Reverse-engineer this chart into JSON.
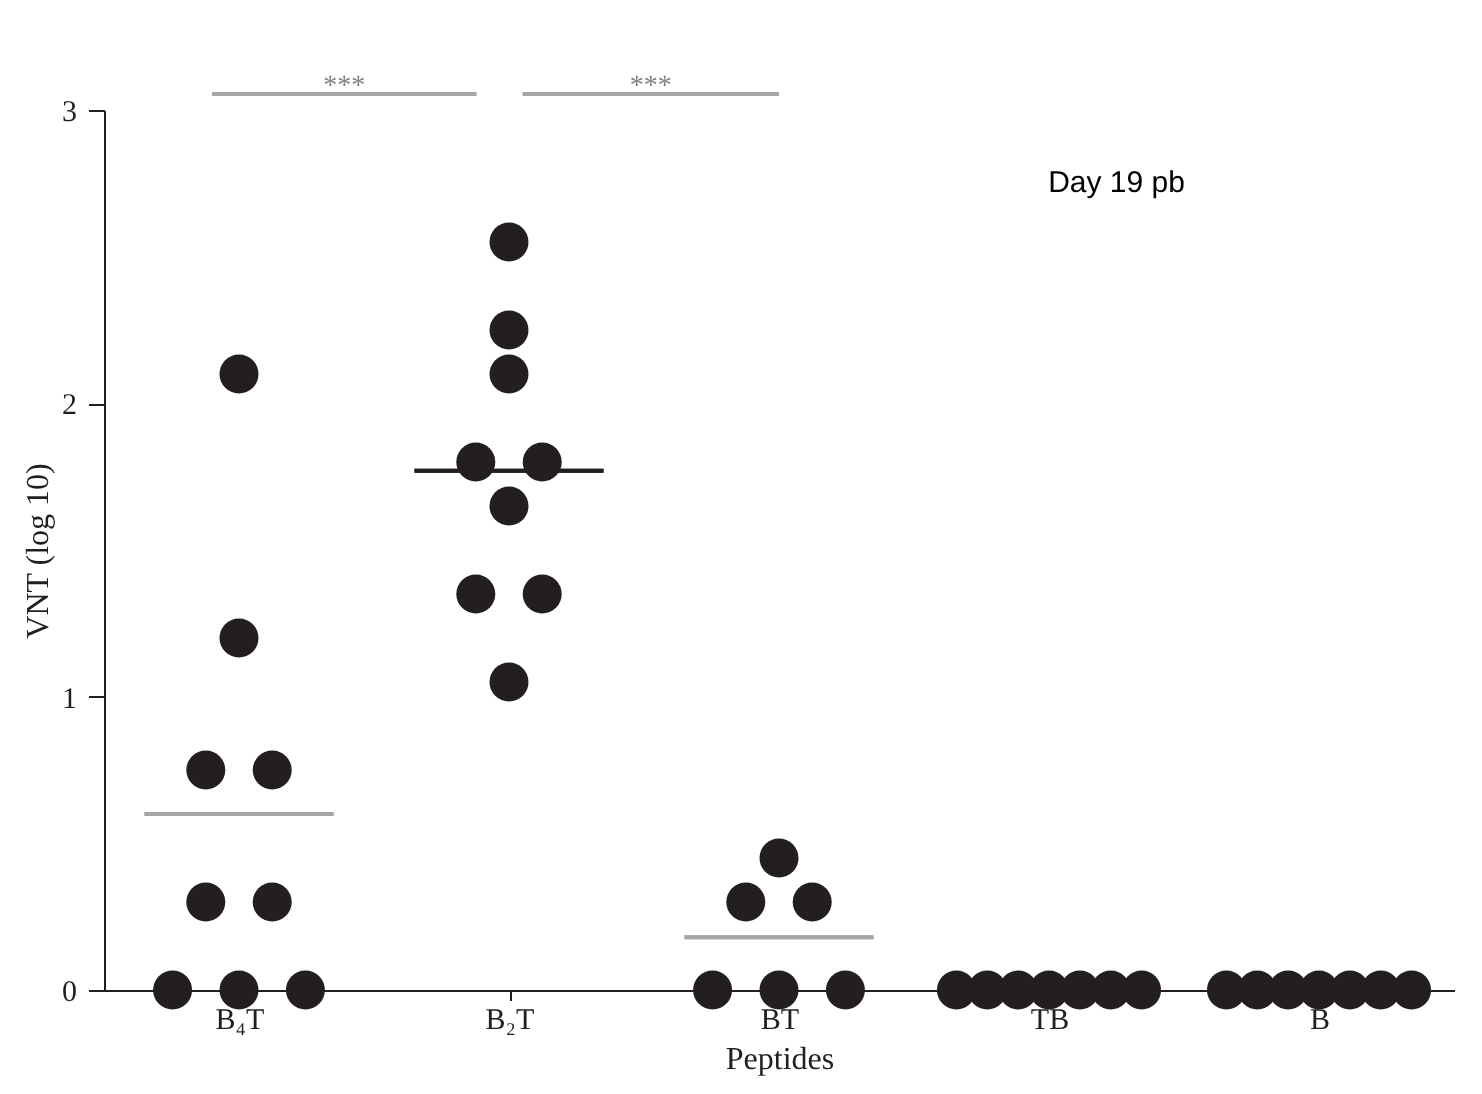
{
  "chart_data": {
    "type": "scatter",
    "xlabel": "Peptides",
    "ylabel": "VNT (log 10)",
    "categories": [
      "B₄T",
      "B₂T",
      "BT",
      "TB",
      "B"
    ],
    "ylim": [
      0,
      3
    ],
    "yticks": [
      0,
      1,
      2,
      3
    ],
    "grid": false,
    "series": [
      {
        "type": "scatter",
        "marker": "circle",
        "color": "#231f20",
        "x": [
          "B₄T",
          "B₄T",
          "B₄T",
          "B₄T",
          "B₄T",
          "B₄T",
          "B₄T",
          "B₄T",
          "B₄T",
          "B₂T",
          "B₂T",
          "B₂T",
          "B₂T",
          "B₂T",
          "B₂T",
          "B₂T",
          "B₂T",
          "B₂T",
          "BT",
          "BT",
          "BT",
          "BT",
          "BT",
          "BT",
          "TB",
          "TB",
          "TB",
          "TB",
          "TB",
          "TB",
          "TB",
          "B",
          "B",
          "B",
          "B",
          "B",
          "B",
          "B"
        ],
        "values": [
          0,
          0,
          0,
          0.3,
          0.3,
          0.75,
          0.75,
          1.2,
          2.1,
          2.55,
          2.25,
          2.1,
          1.8,
          1.8,
          1.65,
          1.35,
          1.35,
          1.05,
          0,
          0,
          0,
          0.3,
          0.3,
          0.45,
          0,
          0,
          0,
          0,
          0,
          0,
          0,
          0,
          0,
          0,
          0,
          0,
          0,
          0
        ]
      },
      {
        "type": "box",
        "x": [
          "B₄T",
          "B₂T",
          "BT"
        ],
        "colors": [
          "#a6a6a6",
          "#231f20",
          "#a6a6a6"
        ],
        "boxes": [
          {
            "low": 0.6,
            "q1": 0.6,
            "median": 0.6,
            "q3": 0.6,
            "high": 0.6
          },
          {
            "low": 1.77,
            "q1": 1.77,
            "median": 1.77,
            "q3": 1.77,
            "high": 1.77
          },
          {
            "low": 0.18,
            "q1": 0.18,
            "median": 0.18,
            "q3": 0.18,
            "high": 0.18
          }
        ]
      }
    ],
    "annotations": [
      "***",
      "***",
      "Day 19 pb"
    ]
  }
}
